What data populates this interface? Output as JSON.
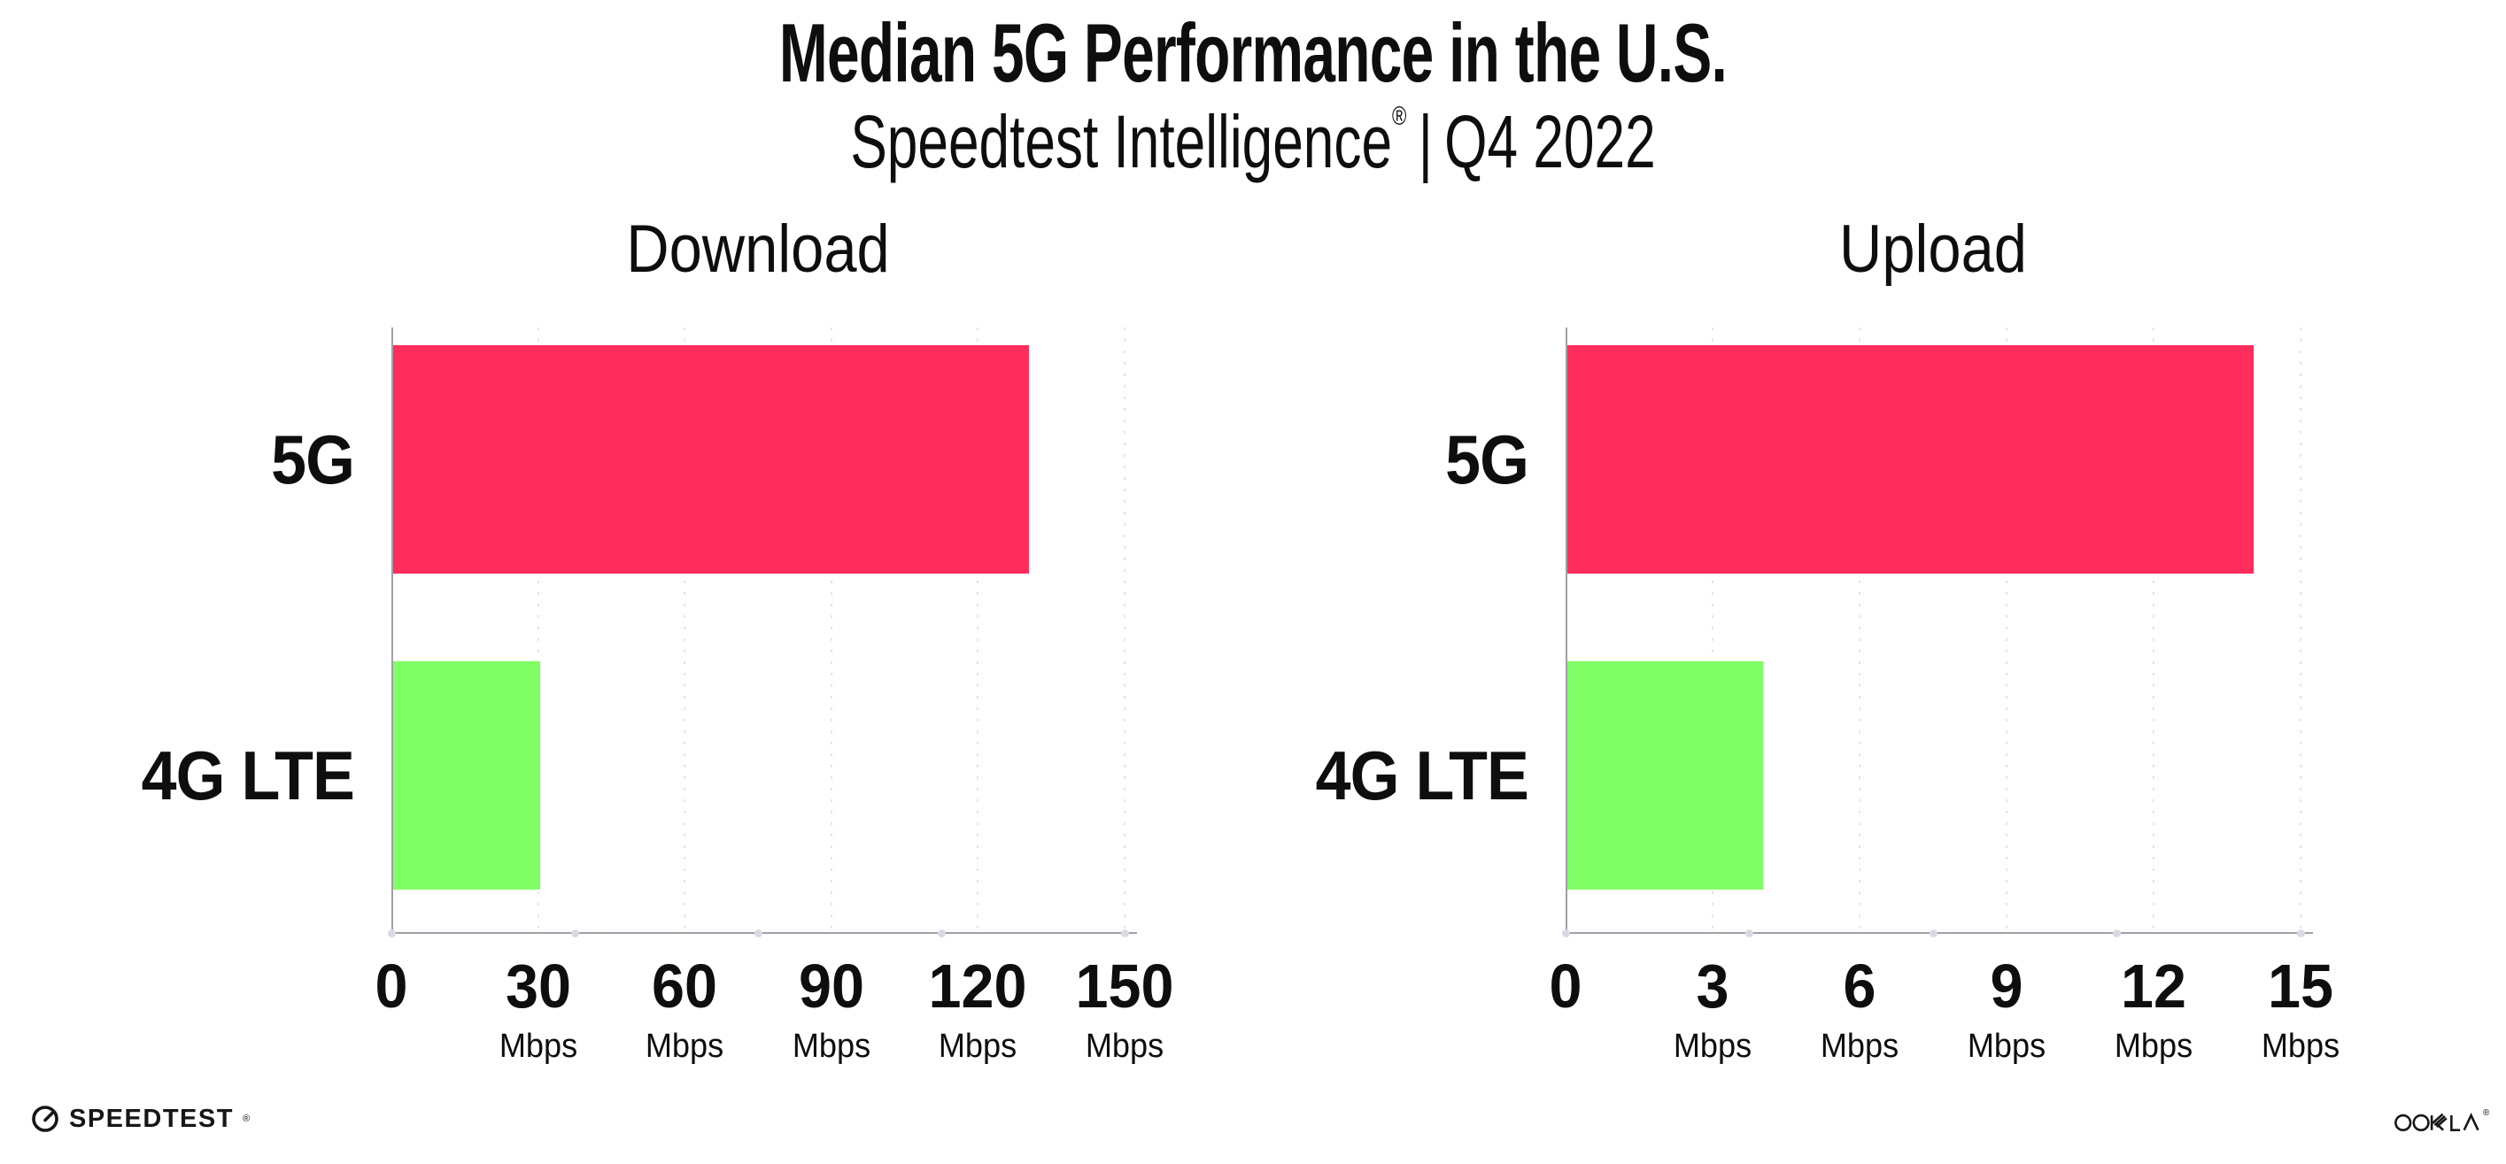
{
  "header": {
    "title": "Median 5G Performance in the U.S.",
    "subtitle": {
      "brand": "Speedtest Intelligence",
      "reg_mark": "®",
      "separator": "|",
      "period": "Q4 2022"
    }
  },
  "chart_data": [
    {
      "type": "bar",
      "orientation": "horizontal",
      "title": "Download",
      "categories": [
        "5G",
        "4G LTE"
      ],
      "values": [
        130,
        30
      ],
      "unit": "Mbps",
      "xlim": [
        0,
        150
      ],
      "xticks": [
        0,
        30,
        60,
        90,
        120,
        150
      ],
      "xtick_unit_labels": [
        "",
        "Mbps",
        "Mbps",
        "Mbps",
        "Mbps",
        "Mbps"
      ],
      "bar_colors": [
        "#ff2d5b",
        "#80ff66"
      ],
      "grid": "dotted-vertical",
      "legend": "none"
    },
    {
      "type": "bar",
      "orientation": "horizontal",
      "title": "Upload",
      "categories": [
        "5G",
        "4G LTE"
      ],
      "values": [
        14,
        4
      ],
      "unit": "Mbps",
      "xlim": [
        0,
        15
      ],
      "xticks": [
        0,
        3,
        6,
        9,
        12,
        15
      ],
      "xtick_unit_labels": [
        "",
        "Mbps",
        "Mbps",
        "Mbps",
        "Mbps",
        "Mbps"
      ],
      "bar_colors": [
        "#ff2d5b",
        "#80ff66"
      ],
      "grid": "dotted-vertical",
      "legend": "none"
    }
  ],
  "footer": {
    "speedtest_logo_text": "SPEEDTEST",
    "speedtest_reg_mark": "®",
    "ookla_logo_text": "OOKLA",
    "ookla_reg_mark": "®"
  },
  "colors": {
    "bar_5g": "#ff2d5b",
    "bar_4g_lte": "#80ff66",
    "axis_line": "#9fa0a8",
    "gridline_dot": "#e3e3ee",
    "axis_tick_dot": "#d9d9e3",
    "text": "#0e0e0e",
    "background": "#ffffff"
  }
}
